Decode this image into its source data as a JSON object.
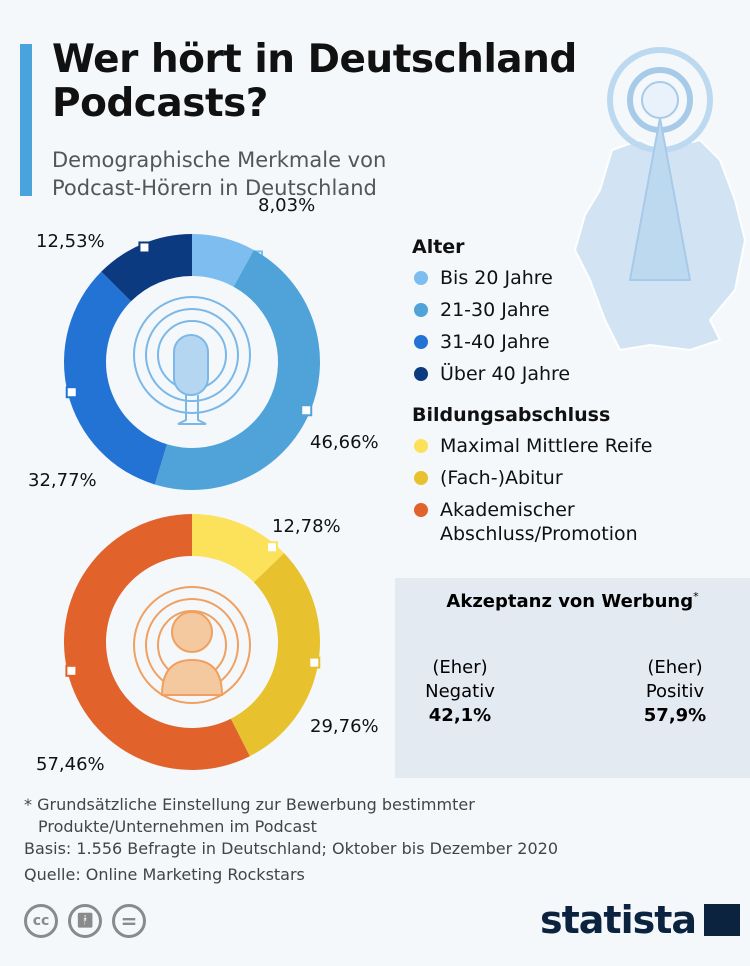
{
  "header": {
    "title_line1": "Wer hört in Deutschland",
    "title_line2": "Podcasts?",
    "subtitle_line1": "Demographische Merkmale von",
    "subtitle_line2": "Podcast-Hörern in Deutschland"
  },
  "chart_data": [
    {
      "type": "pie",
      "title": "Alter",
      "donut": true,
      "categories": [
        "Bis 20 Jahre",
        "21-30 Jahre",
        "31-40 Jahre",
        "Über 40 Jahre"
      ],
      "values": [
        8.03,
        46.66,
        32.77,
        12.53
      ],
      "labels": [
        "8,03%",
        "46,66%",
        "32,77%",
        "12,53%"
      ],
      "colors": [
        "#7dbdf0",
        "#4fa3d8",
        "#2373d4",
        "#0b3a80"
      ],
      "center_icon": "microphone-icon"
    },
    {
      "type": "pie",
      "title": "Bildungsabschluss",
      "donut": true,
      "categories": [
        "Maximal Mittlere Reife",
        "(Fach-)Abitur",
        "Akademischer Abschluss/Promotion"
      ],
      "values": [
        12.78,
        29.76,
        57.46
      ],
      "labels": [
        "12,78%",
        "29,76%",
        "57,46%"
      ],
      "colors": [
        "#fbe25a",
        "#e8c22e",
        "#e2622b"
      ],
      "center_icon": "person-icon"
    },
    {
      "type": "pie",
      "title": "Akzeptanz von Werbung",
      "title_mark": "*",
      "categories": [
        "(Eher) Positiv",
        "(Eher) Negativ"
      ],
      "values": [
        57.9,
        42.1
      ],
      "labels": [
        "57,9%",
        "42,1%"
      ],
      "colors": [
        "#5fd46c",
        "#d7222b"
      ]
    }
  ],
  "legend": {
    "age_title": "Alter",
    "edu_title": "Bildungsabschluss",
    "edu_last_line1": "Akademischer",
    "edu_last_line2": "Abschluss/Promotion"
  },
  "acceptance": {
    "neg_line1": "(Eher)",
    "neg_line2": "Negativ",
    "pos_line1": "(Eher)",
    "pos_line2": "Positiv"
  },
  "footer": {
    "note_line1": "* Grundsätzliche Einstellung zur Bewerbung bestimmter",
    "note_line2": "Produkte/Unternehmen im Podcast",
    "basis": "Basis: 1.556 Befragte in Deutschland; Oktober bis Dezember 2020",
    "source": "Quelle: Online Marketing Rockstars",
    "cc": "cc",
    "eq": "=",
    "logo": "statista"
  }
}
